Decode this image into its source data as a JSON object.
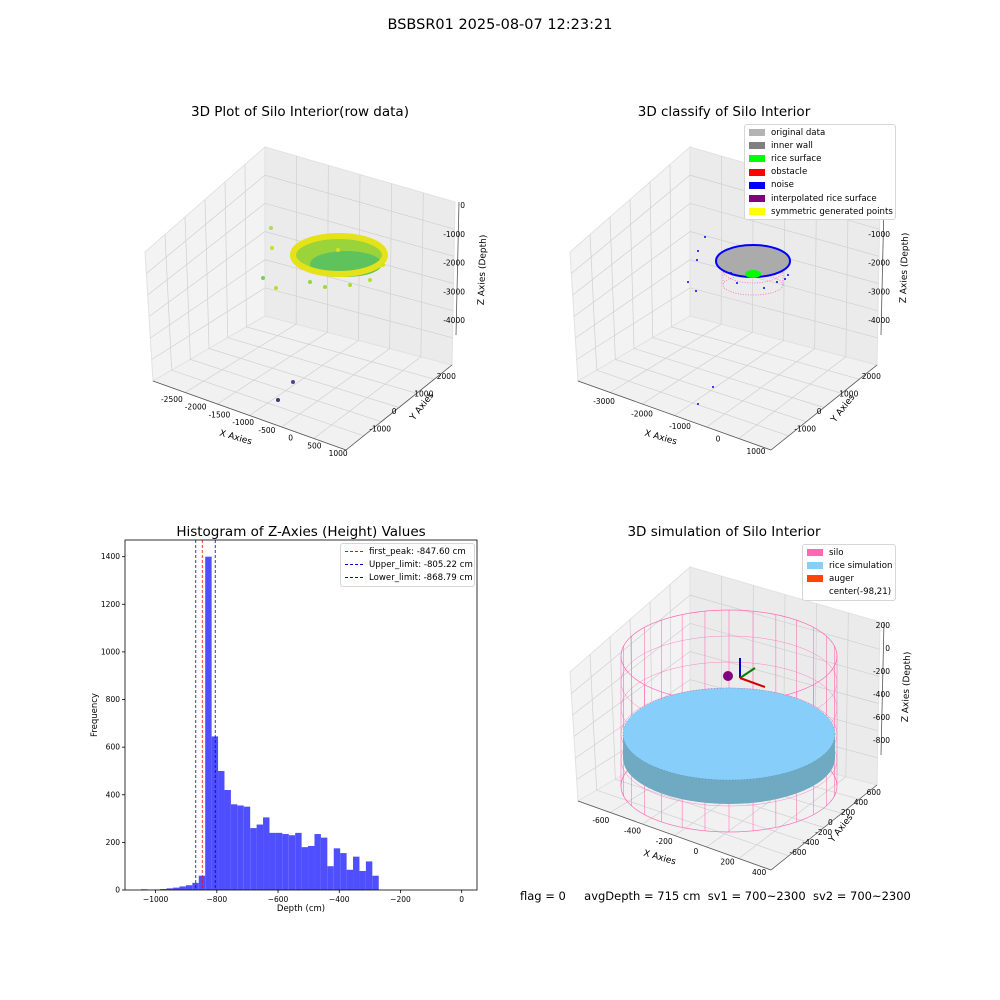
{
  "figure": {
    "title": "BSBSR01 2025-08-07 12:23:21",
    "status": {
      "flag": "flag = 0",
      "avg_depth": "avgDepth = 715 cm",
      "sv1": "sv1 = 700~2300",
      "sv2": "sv2 = 700~2300"
    }
  },
  "colors": {
    "original_data": "#b3b3b3",
    "inner_wall": "#808080",
    "rice_surface": "#00ff00",
    "obstacle": "#ff0000",
    "noise": "#0000ff",
    "interpolated": "#800080",
    "symmetric": "#ffff00",
    "silo": "#ff69b4",
    "rice_sim": "#87cefa",
    "auger": "#ff4500",
    "hist_bar": "#4f4fff",
    "peak_line": "#ff0000",
    "limit_line": "#0000cc",
    "grid": "#d0d0d0",
    "pane": "#f3f3f3"
  },
  "chart_data": [
    {
      "type": "scatter",
      "title": "3D Plot of Silo Interior(row data)",
      "xlabel": "X Axies",
      "ylabel": "Y Axies",
      "zlabel": "Z Axies (Depth)",
      "xticks": [
        "-2500",
        "-2000",
        "-1500",
        "-1000",
        "-500",
        "0",
        "500",
        "1000"
      ],
      "yticks": [
        "-1000",
        "0",
        "1000",
        "2000"
      ],
      "zticks": [
        "0",
        "-1000",
        "-2000",
        "-3000",
        "-4000"
      ],
      "xlim": [
        -2800,
        1000
      ],
      "ylim": [
        -1500,
        2600
      ],
      "zlim": [
        -4500,
        200
      ],
      "colormap": "viridis",
      "grid": true
    },
    {
      "type": "scatter",
      "title": "3D classify of Silo Interior",
      "xlabel": "X Axies",
      "ylabel": "Y Axies",
      "zlabel": "Z Axies (Depth)",
      "xticks": [
        "-3000",
        "-2000",
        "-1000",
        "0",
        "1000"
      ],
      "yticks": [
        "-1000",
        "0",
        "1000",
        "2000"
      ],
      "zticks": [
        "0",
        "-1000",
        "-2000",
        "-3000",
        "-4000"
      ],
      "legend": [
        "original data",
        "inner wall",
        "rice surface",
        "obstacle",
        "noise",
        "interpolated rice surface",
        "symmetric generated points"
      ],
      "legend_position": "top-right",
      "grid": true
    },
    {
      "type": "bar",
      "title": "Histogram of Z-Axies (Height) Values",
      "xlabel": "Depth (cm)",
      "ylabel": "Frequency",
      "xlim": [
        -1100,
        50
      ],
      "ylim": [
        0,
        1470
      ],
      "xticks": [
        -1000,
        -800,
        -600,
        -400,
        -200,
        0
      ],
      "yticks": [
        0,
        200,
        400,
        600,
        800,
        1000,
        1200,
        1400
      ],
      "bin_width": 21,
      "bins_start": [
        -1048,
        -1027,
        -1006,
        -985,
        -964,
        -943,
        -922,
        -901,
        -880,
        -859,
        -838,
        -817,
        -796,
        -775,
        -754,
        -733,
        -712,
        -691,
        -670,
        -649,
        -628,
        -607,
        -586,
        -565,
        -544,
        -523,
        -502,
        -481,
        -460,
        -439,
        -418,
        -397,
        -376,
        -355,
        -334,
        -313,
        -292
      ],
      "values": [
        3,
        1,
        2,
        4,
        7,
        10,
        15,
        20,
        30,
        60,
        1400,
        645,
        500,
        420,
        360,
        355,
        350,
        260,
        275,
        305,
        240,
        240,
        235,
        230,
        240,
        180,
        185,
        235,
        220,
        100,
        175,
        155,
        85,
        140,
        80,
        120,
        60
      ],
      "vlines": [
        {
          "label": "first_peak: -847.60 cm",
          "x": -847.6,
          "color": "#ff0000"
        },
        {
          "label": "Upper_limit: -805.22 cm",
          "x": -805.22,
          "color": "#0000cc"
        },
        {
          "label": "Lower_limit: -868.79 cm",
          "x": -868.79,
          "color": "#0000cc"
        }
      ],
      "legend_position": "top-right",
      "grid": false
    },
    {
      "type": "scatter",
      "title": "3D simulation of Silo Interior",
      "xlabel": "X Axies",
      "ylabel": "Y Axies",
      "zlabel": "Z Axies (Depth)",
      "xticks": [
        "-600",
        "-400",
        "-200",
        "0",
        "200",
        "400"
      ],
      "yticks": [
        "-600",
        "-400",
        "-200",
        "0",
        "200",
        "400",
        "600"
      ],
      "zticks": [
        "200",
        "0",
        "-200",
        "-400",
        "-600",
        "-800"
      ],
      "legend": [
        "silo",
        "rice simulation",
        "auger",
        "center(-98,21)"
      ],
      "legend_position": "top-right",
      "grid": true
    }
  ]
}
